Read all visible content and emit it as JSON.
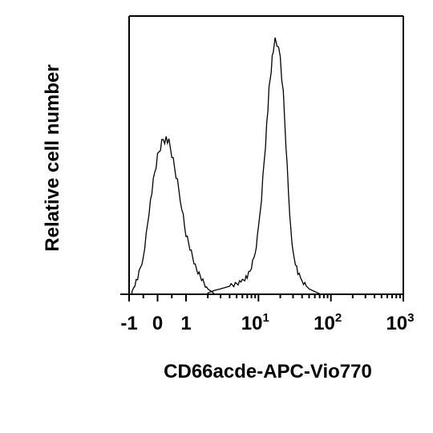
{
  "chart_data": {
    "type": "area",
    "title": "",
    "xlabel": "CD66acde-APC-Vio770",
    "ylabel": "Relative cell number",
    "x_scale": "biexponential (linear near 0, log above 1)",
    "xlim": [
      -1,
      1000
    ],
    "x_ticks": [
      {
        "value": -1,
        "base": "-1",
        "exp": ""
      },
      {
        "value": 0,
        "base": "0",
        "exp": ""
      },
      {
        "value": 1,
        "base": "1",
        "exp": ""
      },
      {
        "value": 10,
        "base": "10",
        "exp": "1"
      },
      {
        "value": 100,
        "base": "10",
        "exp": "2"
      },
      {
        "value": 1000,
        "base": "10",
        "exp": "3"
      }
    ],
    "y_ticks": "unlabeled",
    "ylim": [
      0,
      1
    ],
    "grid": false,
    "legend": "none",
    "line_color": "#000000",
    "series": [
      {
        "x": [
          -0.9,
          -0.7,
          -0.5,
          -0.4,
          -0.3,
          -0.2,
          -0.1,
          0,
          0.1,
          0.2,
          0.3,
          0.4,
          0.5,
          0.6,
          0.7,
          0.85,
          1,
          1.4,
          2,
          2.4
        ],
        "y": [
          0.01,
          0.06,
          0.14,
          0.22,
          0.31,
          0.38,
          0.45,
          0.51,
          0.55,
          0.58,
          0.58,
          0.56,
          0.52,
          0.47,
          0.42,
          0.33,
          0.22,
          0.09,
          0.02,
          0.005
        ]
      },
      {
        "x": [
          2,
          2.5,
          3,
          4,
          5,
          6,
          7,
          8,
          9,
          10,
          11,
          12,
          13,
          14,
          15,
          16,
          17,
          18,
          19,
          20,
          22,
          24,
          26,
          28,
          30,
          35,
          40,
          50,
          60,
          70
        ],
        "y": [
          0.005,
          0.015,
          0.02,
          0.03,
          0.04,
          0.05,
          0.07,
          0.1,
          0.15,
          0.24,
          0.36,
          0.5,
          0.63,
          0.75,
          0.84,
          0.9,
          0.94,
          0.95,
          0.93,
          0.88,
          0.74,
          0.56,
          0.38,
          0.24,
          0.15,
          0.08,
          0.05,
          0.02,
          0.01,
          0.002
        ]
      }
    ]
  }
}
